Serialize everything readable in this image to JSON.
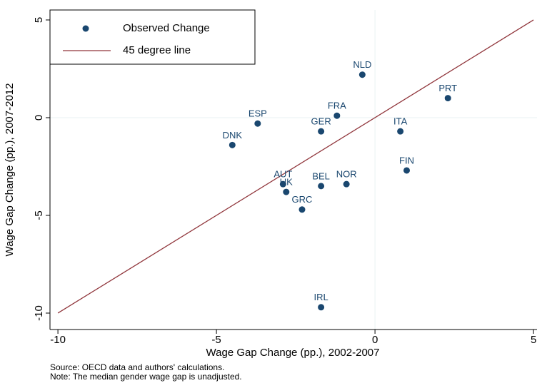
{
  "chart_data": {
    "type": "scatter",
    "x_label": "Wage Gap Change (pp.), 2002-2007",
    "y_label": "Wage Gap Change (pp.), 2007-2012",
    "xlim": [
      -10.25,
      5.11
    ],
    "ylim": [
      -10.84,
      5.51
    ],
    "xticks": [
      -10,
      -5,
      0,
      5
    ],
    "yticks": [
      -10,
      -5,
      0,
      5
    ],
    "zero_lines": true,
    "legend": "top-left",
    "series": [
      {
        "name": "Observed Change",
        "type": "scatter",
        "color": "#1a476f",
        "labels": [
          "NLD",
          "PRT",
          "FRA",
          "ESP",
          "GER",
          "ITA",
          "DNK",
          "FIN",
          "AUT",
          "UK",
          "BEL",
          "NOR",
          "GRC",
          "IRL"
        ],
        "x": [
          -0.4,
          2.3,
          -1.2,
          -3.7,
          -1.7,
          0.8,
          -4.5,
          1.0,
          -2.9,
          -2.8,
          -1.7,
          -0.9,
          -2.3,
          -1.7
        ],
        "values": [
          2.2,
          1.0,
          0.1,
          -0.3,
          -0.7,
          -0.7,
          -1.4,
          -2.7,
          -3.4,
          -3.8,
          -3.5,
          -3.4,
          -4.7,
          -9.7
        ]
      },
      {
        "name": "45 degree line",
        "type": "line",
        "color": "#90353b",
        "x": [
          -10,
          5
        ],
        "values": [
          -10,
          5
        ]
      }
    ],
    "notes": [
      "Source: OECD data and authors' calculations.",
      "Note: The median gender wage gap is unadjusted."
    ]
  }
}
